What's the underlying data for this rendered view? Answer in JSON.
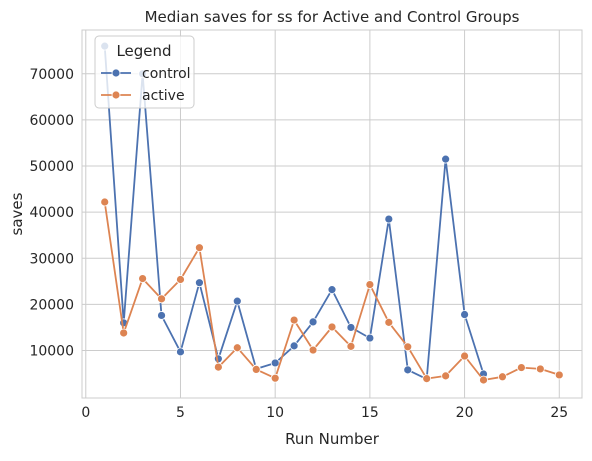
{
  "chart_data": {
    "type": "line",
    "title": "Median saves for ss for Active and Control Groups",
    "xlabel": "Run Number",
    "ylabel": "saves",
    "xlim": [
      -0.2,
      26.2
    ],
    "ylim": [
      -300,
      79500
    ],
    "xticks": [
      0,
      5,
      10,
      15,
      20,
      25
    ],
    "yticks": [
      10000,
      20000,
      30000,
      40000,
      50000,
      60000,
      70000
    ],
    "grid": true,
    "legend": {
      "title": "Legend",
      "placement": "top-left"
    },
    "series": [
      {
        "name": "control",
        "color": "#4c72b0",
        "marker": "circle",
        "x": [
          1,
          2,
          3,
          4,
          5,
          6,
          7,
          8,
          9,
          10,
          11,
          12,
          13,
          14,
          15,
          16,
          17,
          18,
          19,
          20,
          21
        ],
        "y": [
          76000,
          16000,
          70000,
          17600,
          9700,
          24700,
          8200,
          20700,
          6000,
          7300,
          11000,
          16200,
          23200,
          15000,
          12700,
          38500,
          5800,
          3800,
          51500,
          17800,
          4900
        ]
      },
      {
        "name": "active",
        "color": "#dd8452",
        "marker": "circle",
        "x": [
          1,
          2,
          3,
          4,
          5,
          6,
          7,
          8,
          9,
          10,
          11,
          12,
          13,
          14,
          15,
          16,
          17,
          18,
          19,
          20,
          21,
          22,
          23,
          24,
          25
        ],
        "y": [
          42200,
          13800,
          25600,
          21200,
          25400,
          32300,
          6400,
          10600,
          5900,
          4000,
          16600,
          10100,
          15100,
          10900,
          24300,
          16100,
          10800,
          3900,
          4500,
          8800,
          3600,
          4300,
          6300,
          6000,
          4700
        ]
      }
    ]
  }
}
